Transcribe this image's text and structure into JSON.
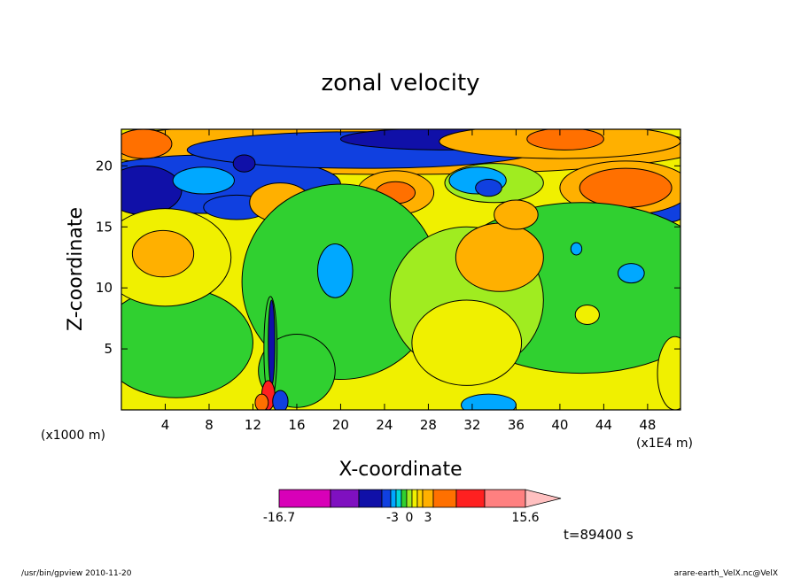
{
  "chart_data": {
    "type": "heatmap",
    "title": "zonal velocity",
    "xlabel": "X-coordinate",
    "ylabel": "Z-coordinate",
    "x_unit_note": "(x1E4 m)",
    "y_unit_note": "(x1000 m)",
    "x_ticks": [
      "4",
      "8",
      "12",
      "16",
      "20",
      "24",
      "28",
      "32",
      "36",
      "40",
      "44",
      "48"
    ],
    "y_ticks": [
      "5",
      "10",
      "15",
      "20"
    ],
    "xlim": [
      0,
      51
    ],
    "ylim": [
      0,
      23
    ],
    "colorbar": {
      "labels": [
        "-16.7",
        "-3",
        "0",
        "3",
        "15.6"
      ],
      "colors": [
        "#d800b8",
        "#7f10c0",
        "#1010a8",
        "#1040e0",
        "#00a8ff",
        "#00d8d8",
        "#30d030",
        "#a0ec20",
        "#f0f000",
        "#ffd000",
        "#ffb000",
        "#ff7000",
        "#ff2020",
        "#ff8080",
        "#ffc0c0"
      ]
    },
    "time_label": "t=89400 s"
  },
  "footer": {
    "left": "/usr/bin/gpview   2010-11-20",
    "right": "arare-earth_VelX.nc@VelX"
  }
}
